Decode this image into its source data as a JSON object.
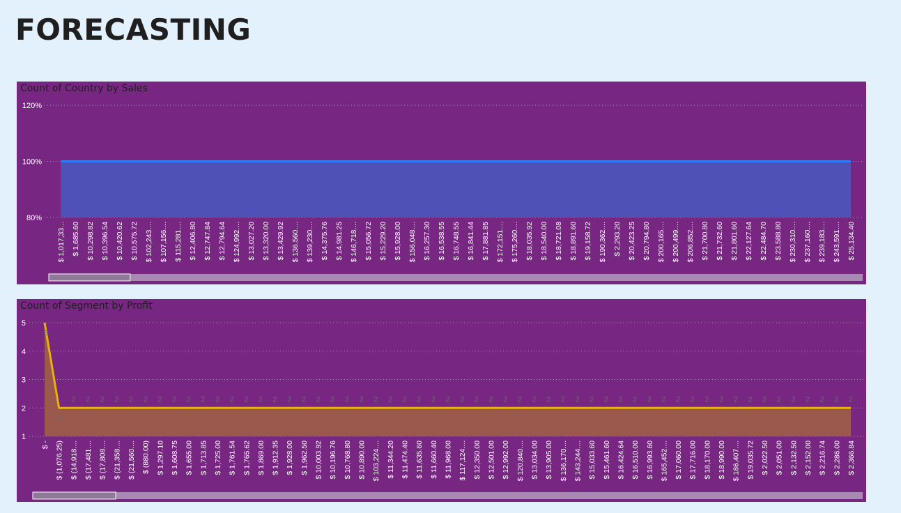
{
  "page": {
    "title": "FORECASTING"
  },
  "colors": {
    "background": "#e3f1fd",
    "panel": "#772682",
    "area1_fill": "#4f51b7",
    "line1": "#2e7cf6",
    "area2_fill": "#9b584d",
    "line2": "#e8b10c",
    "gridline": "#b58bbd",
    "scrollbar_track": "#a889b4",
    "scrollbar_thumb": "#8e7a98"
  },
  "chart_data": [
    {
      "type": "area",
      "title": "Count of Country by Sales",
      "xlabel": "",
      "ylabel": "",
      "ylim": [
        0.8,
        1.2
      ],
      "yticks": [
        "80%",
        "100%",
        "120%"
      ],
      "grid": true,
      "categories": [
        "$ 1,017,33...",
        "$ 1,685.60",
        "$ 10,298.82",
        "$ 10,396.54",
        "$ 10,420.62",
        "$ 10,575.72",
        "$ 102,243....",
        "$ 107,156....",
        "$ 115,281....",
        "$ 12,406.80",
        "$ 12,747.84",
        "$ 12,794.64",
        "$ 124,992....",
        "$ 13,027.20",
        "$ 13,320.00",
        "$ 13,429.92",
        "$ 136,560....",
        "$ 139,230....",
        "$ 14,375.76",
        "$ 14,981.25",
        "$ 146,718....",
        "$ 15,056.72",
        "$ 15,229.20",
        "$ 15,928.00",
        "$ 156,048....",
        "$ 16,257.30",
        "$ 16,538.55",
        "$ 16,748.55",
        "$ 16,841.44",
        "$ 17,881.85",
        "$ 172,151....",
        "$ 175,260....",
        "$ 18,035.92",
        "$ 18,540.00",
        "$ 18,721.08",
        "$ 18,891.60",
        "$ 19,158.72",
        "$ 190,362....",
        "$ 2,293.20",
        "$ 20,423.25",
        "$ 20,794.80",
        "$ 200,165....",
        "$ 200,499....",
        "$ 206,852....",
        "$ 21,700.80",
        "$ 21,732.60",
        "$ 21,801.60",
        "$ 22,127.64",
        "$ 22,484.70",
        "$ 23,588.80",
        "$ 230,310....",
        "$ 237,160....",
        "$ 239,183....",
        "$ 243,591....",
        "$ 25,134.40"
      ],
      "values": [
        1,
        1,
        1,
        1,
        1,
        1,
        1,
        1,
        1,
        1,
        1,
        1,
        1,
        1,
        1,
        1,
        1,
        1,
        1,
        1,
        1,
        1,
        1,
        1,
        1,
        1,
        1,
        1,
        1,
        1,
        1,
        1,
        1,
        1,
        1,
        1,
        1,
        1,
        1,
        1,
        1,
        1,
        1,
        1,
        1,
        1,
        1,
        1,
        1,
        1,
        1,
        1,
        1,
        1,
        1
      ],
      "scrollbar_thumb_fraction": 0.1
    },
    {
      "type": "area",
      "title": "Count of Segment by Profit",
      "xlabel": "",
      "ylabel": "",
      "ylim": [
        1,
        5
      ],
      "yticks": [
        "1",
        "2",
        "3",
        "4",
        "5"
      ],
      "grid": true,
      "categories": [
        "$ -",
        "$ (1,076.25)",
        "$ (14,918....",
        "$ (17,481....",
        "$ (17,808....",
        "$ (21,358....",
        "$ (21,560....",
        "$ (880.00)",
        "$ 1,297.10",
        "$ 1,608.75",
        "$ 1,655.00",
        "$ 1,713.85",
        "$ 1,725.00",
        "$ 1,761.54",
        "$ 1,765.62",
        "$ 1,869.00",
        "$ 1,912.35",
        "$ 1,928.00",
        "$ 1,962.50",
        "$ 10,003.92",
        "$ 10,196.76",
        "$ 10,768.80",
        "$ 10,890.00",
        "$ 103,224....",
        "$ 11,344.20",
        "$ 11,474.40",
        "$ 11,635.60",
        "$ 11,660.40",
        "$ 11,968.00",
        "$ 117,124....",
        "$ 12,350.00",
        "$ 12,501.00",
        "$ 12,992.00",
        "$ 120,840....",
        "$ 13,034.00",
        "$ 13,905.00",
        "$ 136,170....",
        "$ 143,244....",
        "$ 15,033.60",
        "$ 15,461.60",
        "$ 16,424.64",
        "$ 16,510.00",
        "$ 16,993.60",
        "$ 165,452....",
        "$ 17,060.00",
        "$ 17,716.00",
        "$ 18,170.00",
        "$ 18,990.00",
        "$ 186,407....",
        "$ 19,035.72",
        "$ 2,022.50",
        "$ 2,051.00",
        "$ 2,132.50",
        "$ 2,152.00",
        "$ 2,216.74",
        "$ 2,286.00",
        "$ 2,366.84"
      ],
      "values": [
        5,
        2,
        2,
        2,
        2,
        2,
        2,
        2,
        2,
        2,
        2,
        2,
        2,
        2,
        2,
        2,
        2,
        2,
        2,
        2,
        2,
        2,
        2,
        2,
        2,
        2,
        2,
        2,
        2,
        2,
        2,
        2,
        2,
        2,
        2,
        2,
        2,
        2,
        2,
        2,
        2,
        2,
        2,
        2,
        2,
        2,
        2,
        2,
        2,
        2,
        2,
        2,
        2,
        2,
        2,
        2,
        2
      ],
      "data_labels": [
        "5",
        "2",
        "2",
        "2",
        "2",
        "2",
        "2",
        "2",
        "2",
        "2",
        "2",
        "2",
        "2",
        "2",
        "2",
        "2",
        "2",
        "2",
        "2",
        "2",
        "2",
        "2",
        "2",
        "2",
        "2",
        "2",
        "2",
        "2",
        "2",
        "2",
        "2",
        "2",
        "2",
        "2",
        "2",
        "2",
        "2",
        "2",
        "2",
        "2",
        "2",
        "2",
        "2",
        "2",
        "2",
        "2",
        "2",
        "2",
        "2",
        "2",
        "2",
        "2",
        "2",
        "2",
        "2",
        "2",
        "2"
      ],
      "scrollbar_thumb_fraction": 0.1
    }
  ]
}
